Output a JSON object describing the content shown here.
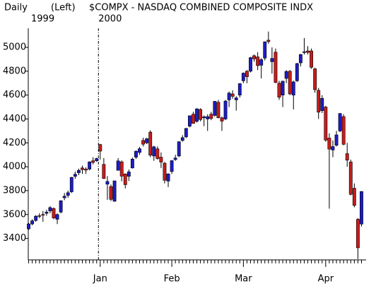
{
  "chart_data": {
    "type": "candlestick",
    "period": "Daily",
    "axis_side": "(Left)",
    "title": "$COMPX - NASDAQ COMBINED COMPOSITE INDX",
    "year_labels": [
      "1999",
      "2000"
    ],
    "up_color": "#1c1cc8",
    "down_color": "#c81c1c",
    "categories": [
      null,
      null,
      null,
      null,
      null,
      null,
      null,
      null,
      null,
      null,
      null,
      null,
      null,
      null,
      null,
      null,
      null,
      null,
      null,
      null,
      "Jan",
      null,
      null,
      null,
      null,
      null,
      null,
      null,
      null,
      null,
      null,
      null,
      null,
      null,
      null,
      null,
      null,
      null,
      null,
      null,
      "Feb",
      null,
      null,
      null,
      null,
      null,
      null,
      null,
      null,
      null,
      null,
      null,
      null,
      null,
      null,
      null,
      null,
      null,
      null,
      null,
      "Mar",
      null,
      null,
      null,
      null,
      null,
      null,
      null,
      null,
      null,
      null,
      null,
      null,
      null,
      null,
      null,
      null,
      null,
      null,
      null,
      null,
      null,
      null,
      "Apr",
      null,
      null,
      null,
      null,
      null,
      null,
      null,
      null,
      null,
      null
    ],
    "open": [
      3480,
      3521,
      3550,
      3590,
      3600,
      3610,
      3630,
      3650,
      3560,
      3620,
      3740,
      3760,
      3790,
      3920,
      3950,
      3990,
      3980,
      3980,
      4050,
      4050,
      4186,
      4020,
      3854,
      3834,
      3711,
      3970,
      4041,
      3940,
      3920,
      3990,
      4080,
      4120,
      4220,
      4200,
      4290,
      4090,
      4150,
      4080,
      4030,
      3880,
      3960,
      4060,
      4090,
      4220,
      4250,
      4340,
      4440,
      4380,
      4480,
      4410,
      4400,
      4440,
      4430,
      4540,
      4410,
      4400,
      4560,
      4610,
      4560,
      4600,
      4720,
      4800,
      4800,
      4930,
      4920,
      4850,
      4910,
      5060,
      4880,
      4960,
      4700,
      4600,
      4740,
      4800,
      4600,
      4720,
      4870,
      4960,
      4970,
      4970,
      4820,
      4640,
      4470,
      4500,
      4240,
      4140,
      4180,
      4300,
      4420,
      4110,
      4040,
      3820,
      3560,
      3520
    ],
    "high": [
      3530,
      3560,
      3595,
      3610,
      3630,
      3640,
      3670,
      3660,
      3610,
      3720,
      3780,
      3800,
      3915,
      3960,
      3985,
      4010,
      3995,
      4045,
      4080,
      4075,
      4192,
      4073,
      3922,
      3851,
      3882,
      4072,
      4053,
      3943,
      3977,
      4077,
      4136,
      4166,
      4243,
      4241,
      4305,
      4175,
      4170,
      4120,
      4040,
      3945,
      4055,
      4100,
      4212,
      4265,
      4325,
      4430,
      4460,
      4490,
      4490,
      4430,
      4440,
      4460,
      4550,
      4560,
      4420,
      4560,
      4630,
      4640,
      4590,
      4700,
      4790,
      4810,
      4920,
      4940,
      4960,
      4910,
      5050,
      5132,
      5000,
      4990,
      4720,
      4720,
      4810,
      4810,
      4720,
      4870,
      4945,
      5078,
      5010,
      4990,
      4830,
      4660,
      4600,
      4510,
      4280,
      4220,
      4300,
      4450,
      4440,
      4200,
      4060,
      3860,
      3570,
      3795
    ],
    "low": [
      3470,
      3510,
      3540,
      3570,
      3540,
      3590,
      3610,
      3560,
      3520,
      3610,
      3720,
      3740,
      3780,
      3900,
      3930,
      3940,
      3940,
      3970,
      4020,
      4040,
      4060,
      3898,
      3723,
      3713,
      3707,
      3970,
      3877,
      3818,
      3880,
      3985,
      4065,
      4100,
      4170,
      4190,
      4080,
      4050,
      4060,
      3990,
      3860,
      3830,
      3940,
      4050,
      4080,
      4210,
      4240,
      4330,
      4360,
      4370,
      4380,
      4340,
      4300,
      4390,
      4420,
      4405,
      4300,
      4390,
      4500,
      4570,
      4470,
      4580,
      4700,
      4700,
      4790,
      4880,
      4810,
      4740,
      4890,
      5030,
      4780,
      4700,
      4560,
      4500,
      4700,
      4600,
      4480,
      4710,
      4840,
      4940,
      4940,
      4820,
      4620,
      4400,
      4450,
      4210,
      3649,
      4080,
      4170,
      4290,
      4180,
      4000,
      3760,
      3660,
      3227,
      3500
    ],
    "close": [
      3521,
      3547,
      3586,
      3586,
      3594,
      3620,
      3658,
      3571,
      3600,
      3715,
      3753,
      3783,
      3911,
      3937,
      3970,
      3976,
      3972,
      4041,
      4036,
      4069,
      4131,
      3901,
      3877,
      3727,
      3882,
      4049,
      3921,
      3850,
      3957,
      4064,
      4130,
      4151,
      4189,
      4235,
      4097,
      4167,
      4069,
      4039,
      3887,
      3940,
      4051,
      4073,
      4210,
      4244,
      4321,
      4427,
      4363,
      4485,
      4395,
      4418,
      4420,
      4404,
      4548,
      4411,
      4382,
      4550,
      4617,
      4590,
      4577,
      4696,
      4784,
      4754,
      4914,
      4904,
      4847,
      4897,
      5046,
      5048,
      4907,
      4706,
      4582,
      4717,
      4798,
      4610,
      4711,
      4864,
      4940,
      4963,
      4958,
      4833,
      4645,
      4457,
      4573,
      4223,
      4148,
      4169,
      4267,
      4446,
      4188,
      4055,
      3769,
      3676,
      3321,
      3793
    ],
    "ylim": [
      3220,
      5160
    ],
    "yticks": [
      3400,
      3600,
      3800,
      4000,
      4200,
      4400,
      4600,
      4800,
      5000
    ]
  }
}
